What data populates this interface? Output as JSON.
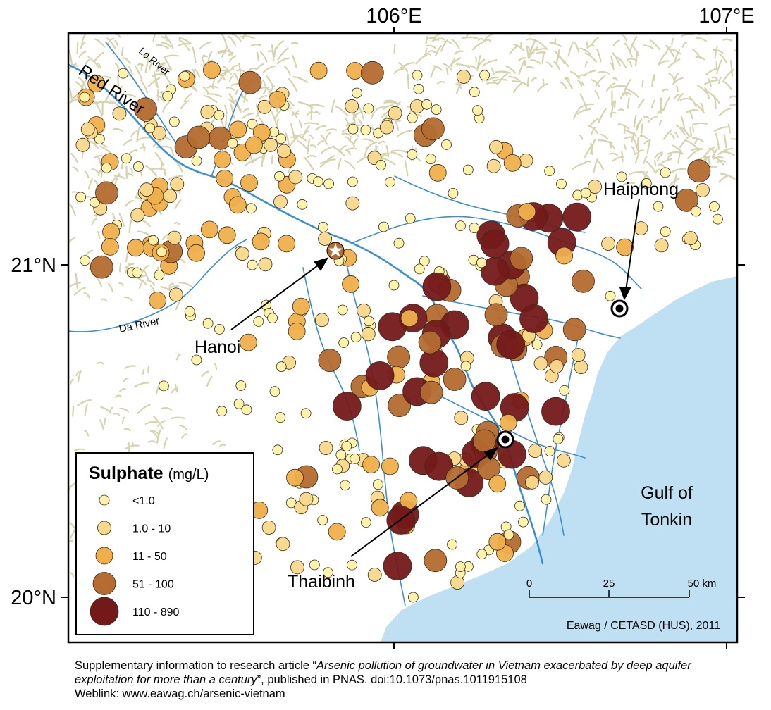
{
  "map": {
    "axes": {
      "lon_ticks": [
        "106°E",
        "107°E"
      ],
      "lat_ticks": [
        "21°N",
        "20°N"
      ]
    },
    "cities": [
      "Hanoi",
      "Haiphong",
      "Thaibinh"
    ],
    "rivers": [
      "Red River",
      "Lo River",
      "Da River"
    ],
    "sea_label_line1": "Gulf of",
    "sea_label_line2": "Tonkin",
    "credit": "Eawag / CETASD (HUS), 2011",
    "scale": {
      "labels": [
        "0",
        "25",
        "50 km"
      ]
    },
    "colors": {
      "sea": "#bfe0f2",
      "land_relief": "#d6d3ae",
      "river": "#3a8fd0",
      "class_1": "#fdf2a8",
      "class_2": "#f8d98a",
      "class_3": "#efb04c",
      "class_4": "#b46c30",
      "class_5": "#74191a"
    },
    "legend": {
      "title": "Sulphate",
      "unit": "(mg/L)",
      "classes": [
        "<1.0",
        "1.0 - 10",
        "11 - 50",
        "51 - 100",
        "110 - 890"
      ]
    }
  },
  "caption": {
    "part1": "Supplementary information to research article “",
    "title": "Arsenic pollution of groundwater in Vietnam exacerbated by deep aquifer exploitation for more than a century",
    "part2": "”, published in PNAS. doi:10.1073/pnas.1011915108",
    "weblink": "Weblink: www.eawag.ch/arsenic-vietnam"
  }
}
